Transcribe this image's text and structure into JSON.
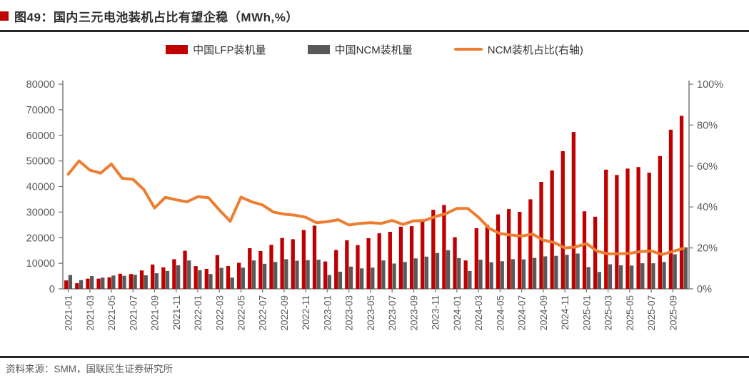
{
  "header": {
    "title": "图49：国内三元电池装机占比有望企稳（MWh,%）"
  },
  "legend": {
    "items": [
      {
        "label": "中国LFP装机量",
        "color": "#c00000",
        "swatch": "rect"
      },
      {
        "label": "中国NCM装机量",
        "color": "#595959",
        "swatch": "rect"
      },
      {
        "label": "NCM装机占比(右轴)",
        "color": "#ed7d31",
        "swatch": "line"
      }
    ]
  },
  "footer": {
    "source": "资料来源：SMM，国联民生证券研究所"
  },
  "chart_data": {
    "type": "bar+line",
    "title": "图49：国内三元电池装机占比有望企稳（MWh,%）",
    "categories": [
      "2021-01",
      "2021-02",
      "2021-03",
      "2021-04",
      "2021-05",
      "2021-06",
      "2021-07",
      "2021-08",
      "2021-09",
      "2021-10",
      "2021-11",
      "2021-12",
      "2022-01",
      "2022-02",
      "2022-03",
      "2022-04",
      "2022-05",
      "2022-06",
      "2022-07",
      "2022-08",
      "2022-09",
      "2022-10",
      "2022-11",
      "2022-12",
      "2023-01",
      "2023-02",
      "2023-03",
      "2023-04",
      "2023-05",
      "2023-06",
      "2023-07",
      "2023-08",
      "2023-09",
      "2023-10",
      "2023-11",
      "2023-12",
      "2024-01",
      "2024-02",
      "2024-03",
      "2024-04",
      "2024-05",
      "2024-06",
      "2024-07",
      "2024-08",
      "2024-09",
      "2024-10",
      "2024-11",
      "2024-12",
      "2025-01",
      "2025-02",
      "2025-03",
      "2025-04",
      "2025-05",
      "2025-06",
      "2025-07",
      "2025-08",
      "2025-09",
      "2025-10"
    ],
    "x_label_every": 2,
    "series": [
      {
        "name": "中国LFP装机量",
        "type": "bar",
        "axis": "left",
        "color": "#c00000",
        "values": [
          3300,
          2200,
          4000,
          4000,
          4500,
          5900,
          5800,
          7200,
          9500,
          8400,
          11600,
          14900,
          8900,
          7800,
          13200,
          8900,
          10200,
          15900,
          14800,
          17200,
          19900,
          19400,
          23000,
          24700,
          10700,
          15200,
          19000,
          17100,
          19800,
          21700,
          22300,
          24300,
          24500,
          26600,
          30900,
          32800,
          20200,
          11100,
          23700,
          25000,
          29100,
          31200,
          30100,
          35000,
          41800,
          46300,
          53800,
          61300,
          30300,
          28200,
          46600,
          44500,
          47000,
          47600,
          45400,
          51900,
          62200,
          67600
        ]
      },
      {
        "name": "中国NCM装机量",
        "type": "bar",
        "axis": "left",
        "color": "#595959",
        "values": [
          5400,
          3400,
          5000,
          4400,
          5200,
          5100,
          5500,
          5300,
          6100,
          7000,
          9200,
          11100,
          7300,
          5800,
          8200,
          4400,
          8300,
          11100,
          9800,
          10500,
          11600,
          11000,
          11200,
          11400,
          5400,
          6700,
          8700,
          8000,
          8300,
          11100,
          9900,
          10500,
          11900,
          12600,
          14000,
          15100,
          12000,
          7000,
          11400,
          10400,
          10800,
          11600,
          11500,
          12100,
          12700,
          12900,
          13300,
          13800,
          8500,
          6600,
          9600,
          9200,
          9100,
          10000,
          10000,
          10500,
          13500,
          16200
        ]
      },
      {
        "name": "NCM装机占比(右轴)",
        "type": "line",
        "axis": "right",
        "color": "#ed7d31",
        "values": [
          56.0,
          62.5,
          58.0,
          56.5,
          61.0,
          54.0,
          53.5,
          48.5,
          39.5,
          44.7,
          43.5,
          42.5,
          45.0,
          44.5,
          38.5,
          33.0,
          44.8,
          42.5,
          41.0,
          37.5,
          36.5,
          36.0,
          35.0,
          32.3,
          32.8,
          33.8,
          31.2,
          32.0,
          32.3,
          32.0,
          33.4,
          31.5,
          33.2,
          33.4,
          35.3,
          36.8,
          39.3,
          39.3,
          35.0,
          29.5,
          27.0,
          26.3,
          25.8,
          26.8,
          23.8,
          22.6,
          20.0,
          20.5,
          22.1,
          18.4,
          17.1,
          17.1,
          17.4,
          18.2,
          18.5,
          16.8,
          18.3,
          19.8
        ]
      }
    ],
    "left_axis": {
      "min": 0,
      "max": 80000,
      "ticks": [
        "0",
        "10000",
        "20000",
        "30000",
        "40000",
        "50000",
        "60000",
        "70000",
        "80000"
      ]
    },
    "right_axis": {
      "min": 0,
      "max": 100,
      "ticks": [
        "0%",
        "20%",
        "40%",
        "60%",
        "80%",
        "100%"
      ]
    },
    "grid": false,
    "legend_position": "top"
  }
}
